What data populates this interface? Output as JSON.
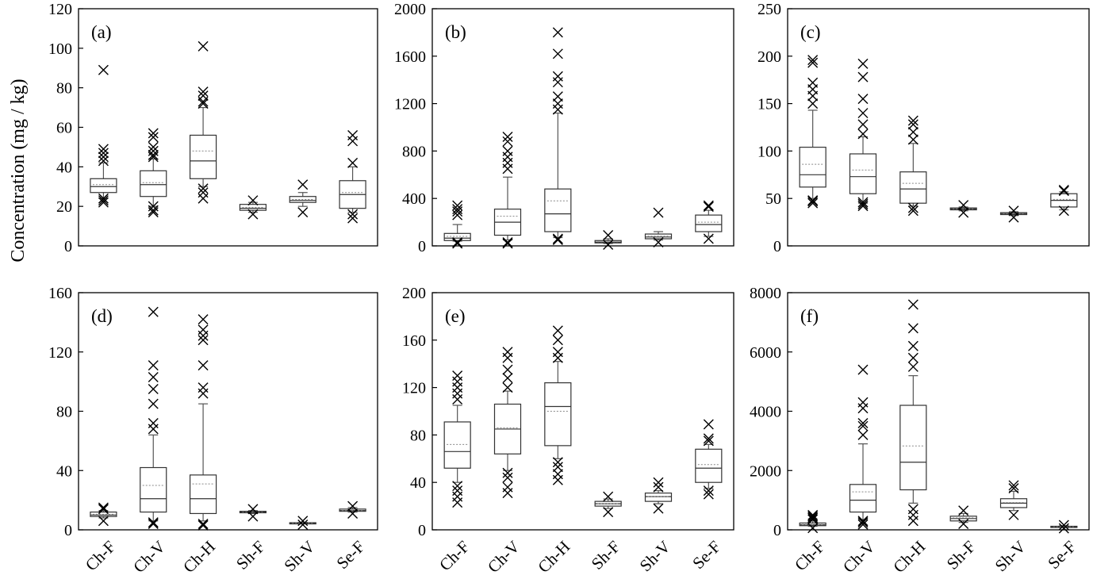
{
  "ylabel": "Concentration (mg / kg)",
  "chart_data": [
    {
      "type": "box",
      "panel_label": "(a)",
      "categories": [
        "Ch-F",
        "Ch-V",
        "Ch-H",
        "Sh-F",
        "Sh-V",
        "Se-F"
      ],
      "ylim": [
        0,
        120
      ],
      "yticks": [
        0,
        20,
        40,
        60,
        80,
        100,
        120
      ],
      "xtick_labels_shown": false,
      "boxes": [
        {
          "whisker_low": 24,
          "q1": 27,
          "median": 30,
          "mean": 31,
          "q3": 34,
          "whisker_high": 42,
          "outliers": [
            22,
            23,
            24,
            43,
            45,
            47,
            49,
            89
          ]
        },
        {
          "whisker_low": 20,
          "q1": 25,
          "median": 31,
          "mean": 32,
          "q3": 38,
          "whisker_high": 44,
          "outliers": [
            17,
            18,
            20,
            45,
            46,
            48,
            50,
            55,
            57
          ]
        },
        {
          "whisker_low": 30,
          "q1": 34,
          "median": 43,
          "mean": 48,
          "q3": 56,
          "whisker_high": 70,
          "outliers": [
            24,
            27,
            29,
            72,
            73,
            76,
            78,
            101
          ]
        },
        {
          "whisker_low": 17,
          "q1": 18,
          "median": 19,
          "mean": 19.5,
          "q3": 21,
          "whisker_high": 22,
          "outliers": [
            16,
            23
          ]
        },
        {
          "whisker_low": 20,
          "q1": 22,
          "median": 23,
          "mean": 23.5,
          "q3": 25,
          "whisker_high": 27,
          "outliers": [
            17,
            31
          ]
        },
        {
          "whisker_low": 17,
          "q1": 19,
          "median": 26,
          "mean": 27,
          "q3": 33,
          "whisker_high": 40,
          "outliers": [
            14,
            16,
            42,
            53,
            56
          ]
        }
      ]
    },
    {
      "type": "box",
      "panel_label": "(b)",
      "categories": [
        "Ch-F",
        "Ch-V",
        "Ch-H",
        "Sh-F",
        "Sh-V",
        "Se-F"
      ],
      "ylim": [
        0,
        2000
      ],
      "yticks": [
        0,
        400,
        800,
        1200,
        1600,
        2000
      ],
      "xtick_labels_shown": false,
      "boxes": [
        {
          "whisker_low": 40,
          "q1": 45,
          "median": 65,
          "mean": 80,
          "q3": 105,
          "whisker_high": 180,
          "outliers": [
            20,
            30,
            260,
            290,
            310,
            340
          ]
        },
        {
          "whisker_low": 50,
          "q1": 90,
          "median": 200,
          "mean": 250,
          "q3": 310,
          "whisker_high": 580,
          "outliers": [
            20,
            30,
            650,
            700,
            750,
            800,
            880,
            920
          ]
        },
        {
          "whisker_low": 70,
          "q1": 120,
          "median": 270,
          "mean": 380,
          "q3": 480,
          "whisker_high": 1120,
          "outliers": [
            50,
            60,
            1150,
            1200,
            1260,
            1380,
            1430,
            1620,
            1800
          ]
        },
        {
          "whisker_low": 20,
          "q1": 25,
          "median": 32,
          "mean": 35,
          "q3": 45,
          "whisker_high": 60,
          "outliers": [
            10,
            90
          ]
        },
        {
          "whisker_low": 50,
          "q1": 60,
          "median": 75,
          "mean": 82,
          "q3": 100,
          "whisker_high": 120,
          "outliers": [
            30,
            280
          ]
        },
        {
          "whisker_low": 80,
          "q1": 120,
          "median": 180,
          "mean": 200,
          "q3": 260,
          "whisker_high": 300,
          "outliers": [
            60,
            330,
            340
          ]
        }
      ]
    },
    {
      "type": "box",
      "panel_label": "(c)",
      "categories": [
        "Ch-F",
        "Ch-V",
        "Ch-H",
        "Sh-F",
        "Sh-V",
        "Se-F"
      ],
      "ylim": [
        0,
        250
      ],
      "yticks": [
        0,
        50,
        100,
        150,
        200,
        250
      ],
      "xtick_labels_shown": false,
      "boxes": [
        {
          "whisker_low": 50,
          "q1": 62,
          "median": 75,
          "mean": 86,
          "q3": 104,
          "whisker_high": 143,
          "outliers": [
            45,
            47,
            48,
            150,
            158,
            165,
            172,
            193,
            196
          ]
        },
        {
          "whisker_low": 45,
          "q1": 55,
          "median": 73,
          "mean": 80,
          "q3": 97,
          "whisker_high": 115,
          "outliers": [
            42,
            44,
            46,
            118,
            128,
            140,
            155,
            178,
            192
          ]
        },
        {
          "whisker_low": 42,
          "q1": 45,
          "median": 60,
          "mean": 66,
          "q3": 78,
          "whisker_high": 108,
          "outliers": [
            37,
            40,
            112,
            120,
            128,
            132
          ]
        },
        {
          "whisker_low": 37,
          "q1": 38,
          "median": 39,
          "mean": 39,
          "q3": 40,
          "whisker_high": 41,
          "outliers": [
            35,
            43
          ]
        },
        {
          "whisker_low": 32,
          "q1": 33,
          "median": 34,
          "mean": 34,
          "q3": 35,
          "whisker_high": 36,
          "outliers": [
            30,
            37
          ]
        },
        {
          "whisker_low": 38,
          "q1": 41,
          "median": 48,
          "mean": 49,
          "q3": 55,
          "whisker_high": 57,
          "outliers": [
            37,
            58,
            59
          ]
        }
      ]
    },
    {
      "type": "box",
      "panel_label": "(d)",
      "categories": [
        "Ch-F",
        "Ch-V",
        "Ch-H",
        "Sh-F",
        "Sh-V",
        "Se-F"
      ],
      "ylim": [
        0,
        160
      ],
      "yticks": [
        0,
        40,
        80,
        120,
        160
      ],
      "xtick_labels_shown": true,
      "boxes": [
        {
          "whisker_low": 8,
          "q1": 9,
          "median": 10,
          "mean": 10.5,
          "q3": 12,
          "whisker_high": 13,
          "outliers": [
            6,
            14,
            15
          ]
        },
        {
          "whisker_low": 6,
          "q1": 12,
          "median": 21,
          "mean": 30,
          "q3": 42,
          "whisker_high": 64,
          "outliers": [
            4,
            5,
            68,
            72,
            85,
            95,
            103,
            111,
            147
          ]
        },
        {
          "whisker_low": 6,
          "q1": 11,
          "median": 21,
          "mean": 31,
          "q3": 37,
          "whisker_high": 85,
          "outliers": [
            3,
            4,
            92,
            96,
            111,
            128,
            131,
            135,
            142
          ]
        },
        {
          "whisker_low": 11,
          "q1": 11.5,
          "median": 12,
          "mean": 12,
          "q3": 12.5,
          "whisker_high": 13,
          "outliers": [
            9,
            14
          ]
        },
        {
          "whisker_low": 4,
          "q1": 4.2,
          "median": 4.5,
          "mean": 4.5,
          "q3": 4.8,
          "whisker_high": 5,
          "outliers": [
            3.5,
            6
          ]
        },
        {
          "whisker_low": 12,
          "q1": 12.5,
          "median": 13,
          "mean": 13,
          "q3": 14,
          "whisker_high": 15,
          "outliers": [
            11,
            16
          ]
        }
      ]
    },
    {
      "type": "box",
      "panel_label": "(e)",
      "categories": [
        "Ch-F",
        "Ch-V",
        "Ch-H",
        "Sh-F",
        "Sh-V",
        "Se-F"
      ],
      "ylim": [
        0,
        200
      ],
      "yticks": [
        0,
        40,
        80,
        120,
        160,
        200
      ],
      "xtick_labels_shown": true,
      "boxes": [
        {
          "whisker_low": 40,
          "q1": 52,
          "median": 66,
          "mean": 72,
          "q3": 91,
          "whisker_high": 105,
          "outliers": [
            23,
            28,
            33,
            37,
            110,
            115,
            120,
            125,
            130
          ]
        },
        {
          "whisker_low": 50,
          "q1": 64,
          "median": 85,
          "mean": 86,
          "q3": 106,
          "whisker_high": 117,
          "outliers": [
            31,
            36,
            44,
            48,
            120,
            128,
            135,
            145,
            150
          ]
        },
        {
          "whisker_low": 60,
          "q1": 71,
          "median": 104,
          "mean": 100,
          "q3": 124,
          "whisker_high": 142,
          "outliers": [
            42,
            47,
            53,
            57,
            145,
            150,
            160,
            168
          ]
        },
        {
          "whisker_low": 18,
          "q1": 20,
          "median": 22,
          "mean": 22,
          "q3": 24,
          "whisker_high": 26,
          "outliers": [
            15,
            28
          ]
        },
        {
          "whisker_low": 22,
          "q1": 24,
          "median": 28,
          "mean": 28,
          "q3": 31,
          "whisker_high": 33,
          "outliers": [
            18,
            36,
            40
          ]
        },
        {
          "whisker_low": 35,
          "q1": 40,
          "median": 52,
          "mean": 55,
          "q3": 68,
          "whisker_high": 72,
          "outliers": [
            30,
            33,
            75,
            77,
            89
          ]
        }
      ]
    },
    {
      "type": "box",
      "panel_label": "(f)",
      "categories": [
        "Ch-F",
        "Ch-V",
        "Ch-H",
        "Sh-F",
        "Sh-V",
        "Se-F"
      ],
      "ylim": [
        0,
        8000
      ],
      "yticks": [
        0,
        2000,
        4000,
        6000,
        8000
      ],
      "xtick_labels_shown": true,
      "boxes": [
        {
          "whisker_low": 120,
          "q1": 140,
          "median": 170,
          "mean": 180,
          "q3": 230,
          "whisker_high": 300,
          "outliers": [
            60,
            350,
            400,
            450,
            500
          ]
        },
        {
          "whisker_low": 350,
          "q1": 600,
          "median": 1000,
          "mean": 1280,
          "q3": 1530,
          "whisker_high": 2900,
          "outliers": [
            180,
            250,
            300,
            3200,
            3500,
            3600,
            4100,
            4300,
            5400
          ]
        },
        {
          "whisker_low": 900,
          "q1": 1350,
          "median": 2280,
          "mean": 2830,
          "q3": 4200,
          "whisker_high": 5200,
          "outliers": [
            300,
            500,
            700,
            5500,
            5800,
            6200,
            6800,
            7600
          ]
        },
        {
          "whisker_low": 250,
          "q1": 300,
          "median": 380,
          "mean": 400,
          "q3": 460,
          "whisker_high": 550,
          "outliers": [
            200,
            650
          ]
        },
        {
          "whisker_low": 650,
          "q1": 750,
          "median": 900,
          "mean": 920,
          "q3": 1050,
          "whisker_high": 1300,
          "outliers": [
            500,
            1400,
            1500
          ]
        },
        {
          "whisker_low": 80,
          "q1": 90,
          "median": 100,
          "mean": 105,
          "q3": 120,
          "whisker_high": 140,
          "outliers": [
            50,
            160
          ]
        }
      ]
    }
  ]
}
